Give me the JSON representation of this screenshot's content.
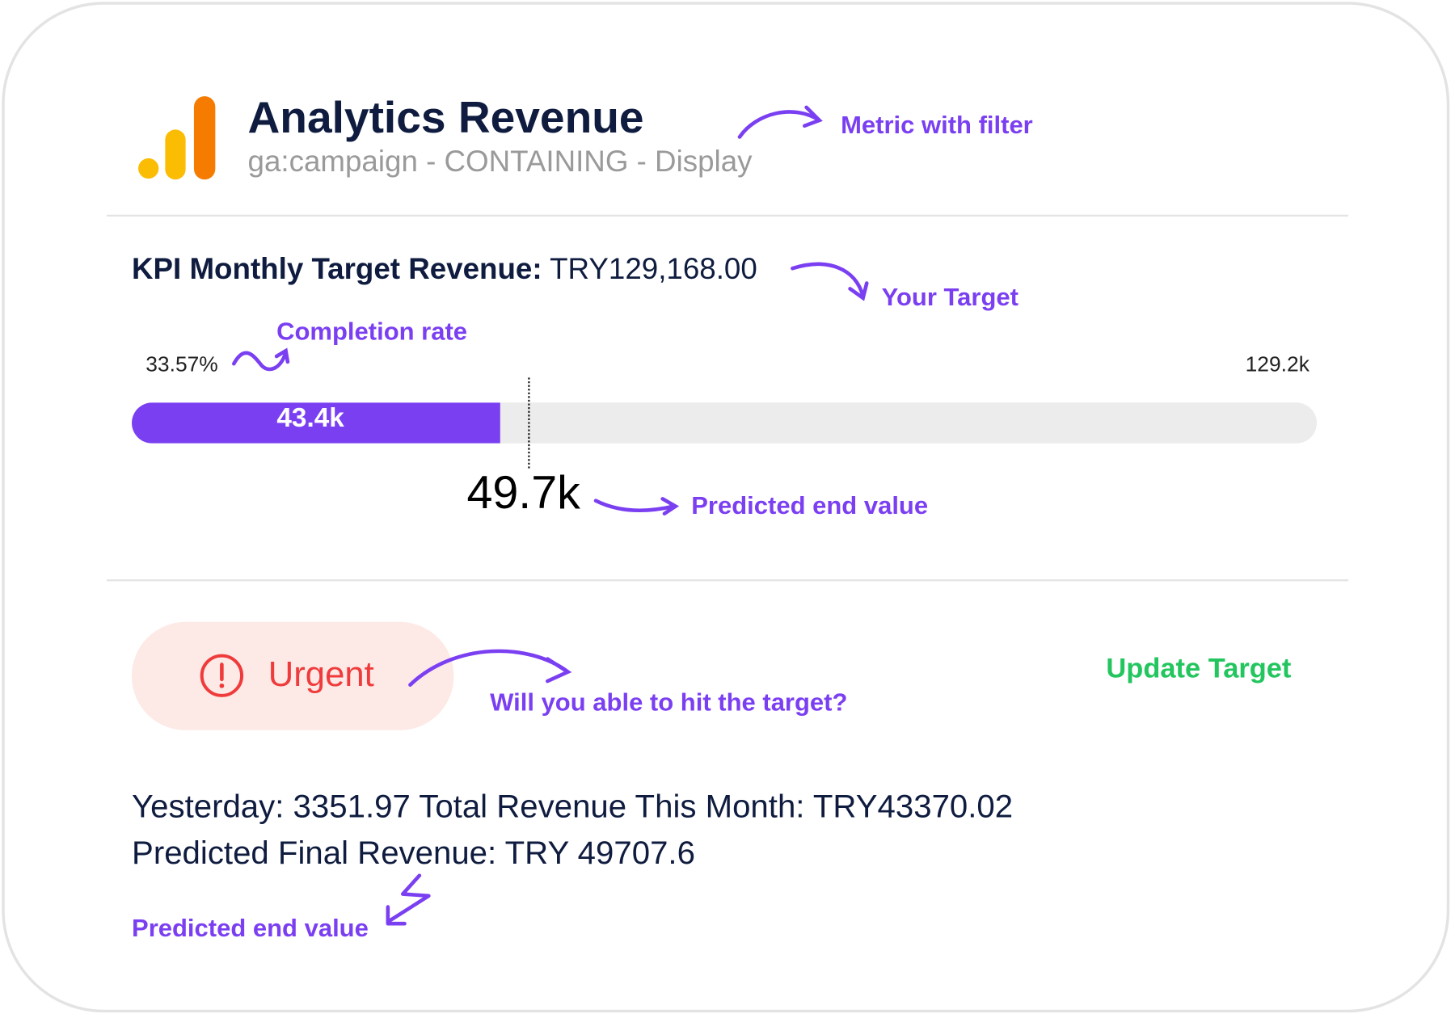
{
  "header": {
    "title": "Analytics Revenue",
    "filter": "ga:campaign - CONTAINING - Display",
    "logo_icon": "google-analytics-logo"
  },
  "kpi": {
    "label": "KPI Monthly Target Revenue:",
    "value": "TRY129,168.00"
  },
  "progress": {
    "completion_rate": "33.57%",
    "current_label": "43.4k",
    "target_label": "129.2k",
    "predicted_label": "49.7k",
    "completion_fraction": 0.3357,
    "predicted_fraction": 0.3848,
    "fill_color": "#7b3ff2"
  },
  "status": {
    "label": "Urgent",
    "icon": "alert-circle-icon",
    "color": "#ef3b3b"
  },
  "actions": {
    "update_target": "Update Target"
  },
  "stats": {
    "line1": "Yesterday: 3351.97 Total Revenue This Month: TRY43370.02",
    "line2": "Predicted Final Revenue: TRY 49707.6"
  },
  "annotations": {
    "metric_with_filter": "Metric with filter",
    "your_target": "Your Target",
    "completion_rate": "Completion rate",
    "predicted_end_value": "Predicted end value",
    "hit_target": "Will you able to hit the target?",
    "predicted_end_value_2": "Predicted end value"
  }
}
